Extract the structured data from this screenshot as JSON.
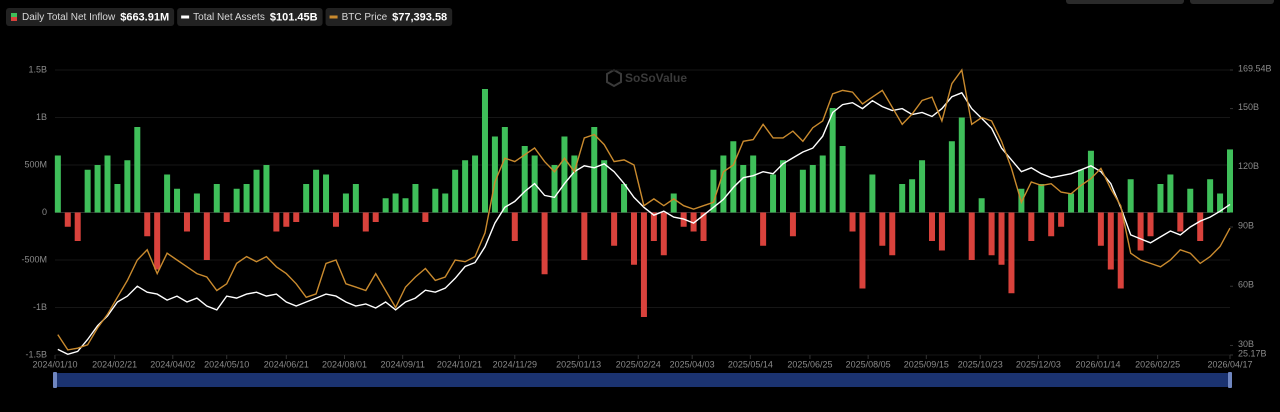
{
  "chart_data": {
    "type": "combo",
    "watermark": "SoSoValue",
    "x": [
      "2024-01-12",
      "2024-01-19",
      "2024-01-26",
      "2024-02-02",
      "2024-02-09",
      "2024-02-16",
      "2024-02-23",
      "2024-03-01",
      "2024-03-08",
      "2024-03-15",
      "2024-03-22",
      "2024-03-29",
      "2024-04-05",
      "2024-04-12",
      "2024-04-19",
      "2024-04-26",
      "2024-05-03",
      "2024-05-10",
      "2024-05-17",
      "2024-05-24",
      "2024-05-31",
      "2024-06-07",
      "2024-06-14",
      "2024-06-21",
      "2024-06-28",
      "2024-07-05",
      "2024-07-12",
      "2024-07-19",
      "2024-07-26",
      "2024-08-02",
      "2024-08-09",
      "2024-08-16",
      "2024-08-23",
      "2024-08-30",
      "2024-09-06",
      "2024-09-13",
      "2024-09-20",
      "2024-09-27",
      "2024-10-04",
      "2024-10-11",
      "2024-10-18",
      "2024-10-25",
      "2024-11-01",
      "2024-11-08",
      "2024-11-15",
      "2024-11-22",
      "2024-11-29",
      "2024-12-06",
      "2024-12-13",
      "2024-12-20",
      "2024-12-27",
      "2025-01-03",
      "2025-01-10",
      "2025-01-17",
      "2025-01-24",
      "2025-01-31",
      "2025-02-07",
      "2025-02-14",
      "2025-02-21",
      "2025-02-28",
      "2025-03-07",
      "2025-03-14",
      "2025-03-21",
      "2025-03-28",
      "2025-04-04",
      "2025-04-11",
      "2025-04-18",
      "2025-04-25",
      "2025-05-02",
      "2025-05-09",
      "2025-05-16",
      "2025-05-23",
      "2025-05-30",
      "2025-06-06",
      "2025-06-13",
      "2025-06-20",
      "2025-06-27",
      "2025-07-04",
      "2025-07-11",
      "2025-07-18",
      "2025-07-25",
      "2025-08-01",
      "2025-08-08",
      "2025-08-15",
      "2025-08-22",
      "2025-08-29",
      "2025-09-05",
      "2025-09-12",
      "2025-09-19",
      "2025-09-26",
      "2025-10-03",
      "2025-10-10",
      "2025-10-17",
      "2025-10-24",
      "2025-10-31",
      "2025-11-07",
      "2025-11-14",
      "2025-11-21",
      "2025-11-28",
      "2025-12-05",
      "2025-12-12",
      "2025-12-19",
      "2025-12-26",
      "2026-01-02",
      "2026-01-09",
      "2026-01-16",
      "2026-01-23",
      "2026-01-30",
      "2026-02-06",
      "2026-02-13",
      "2026-02-20",
      "2026-02-27",
      "2026-03-06",
      "2026-03-13",
      "2026-03-20",
      "2026-03-27",
      "2026-04-03",
      "2026-04-10",
      "2026-04-17"
    ],
    "xlim": [
      "2024-01-10",
      "2026-04-17"
    ],
    "xticks": [
      {
        "value": "2024-01-10",
        "label": "2024/01/10"
      },
      {
        "value": "2024-02-21",
        "label": "2024/02/21"
      },
      {
        "value": "2024-04-02",
        "label": "2024/04/02"
      },
      {
        "value": "2024-05-10",
        "label": "2024/05/10"
      },
      {
        "value": "2024-06-21",
        "label": "2024/06/21"
      },
      {
        "value": "2024-08-01",
        "label": "2024/08/01"
      },
      {
        "value": "2024-09-11",
        "label": "2024/09/11"
      },
      {
        "value": "2024-10-21",
        "label": "2024/10/21"
      },
      {
        "value": "2024-11-29",
        "label": "2024/11/29"
      },
      {
        "value": "2025-01-13",
        "label": "2025/01/13"
      },
      {
        "value": "2025-02-24",
        "label": "2025/02/24"
      },
      {
        "value": "2025-04-03",
        "label": "2025/04/03"
      },
      {
        "value": "2025-05-14",
        "label": "2025/05/14"
      },
      {
        "value": "2025-06-25",
        "label": "2025/06/25"
      },
      {
        "value": "2025-08-05",
        "label": "2025/08/05"
      },
      {
        "value": "2025-09-15",
        "label": "2025/09/15"
      },
      {
        "value": "2025-10-23",
        "label": "2025/10/23"
      },
      {
        "value": "2025-12-03",
        "label": "2025/12/03"
      },
      {
        "value": "2026-01-14",
        "label": "2026/01/14"
      },
      {
        "value": "2026-02-25",
        "label": "2026/02/25"
      },
      {
        "value": "2026-04-17",
        "label": "2026/04/17"
      }
    ],
    "ylim": [
      -1.5,
      1.5
    ],
    "yticks": [
      {
        "value": -1.5,
        "label": "-1.5B"
      },
      {
        "value": -1,
        "label": "-1B"
      },
      {
        "value": -0.5,
        "label": "-500M"
      },
      0,
      {
        "value": 0.5,
        "label": "500M"
      },
      {
        "value": 1,
        "label": "1B"
      },
      {
        "value": 1.5,
        "label": "1.5B"
      }
    ],
    "y2lim": [
      25.17,
      169.54
    ],
    "y2ticks": [
      {
        "value": 25.17,
        "label": "25.17B"
      },
      {
        "value": 30,
        "label": "30B"
      },
      {
        "value": 60,
        "label": "60B"
      },
      {
        "value": 90,
        "label": "90B"
      },
      {
        "value": 120,
        "label": "120B"
      },
      {
        "value": 150,
        "label": "150B"
      },
      {
        "value": 169.54,
        "label": "169.54B"
      }
    ],
    "y3lim": [
      40000,
      124000
    ],
    "series": [
      {
        "name": "Daily Total Net Inflow",
        "latest": "$663.91M",
        "type": "bar",
        "color": "#3fbf5a",
        "negative_color": "#d9423c",
        "values": [
          0.6,
          -0.15,
          -0.3,
          0.45,
          0.5,
          0.6,
          0.3,
          0.55,
          0.9,
          -0.25,
          -0.6,
          0.4,
          0.25,
          -0.2,
          0.2,
          -0.5,
          0.3,
          -0.1,
          0.25,
          0.3,
          0.45,
          0.5,
          -0.2,
          -0.15,
          -0.1,
          0.3,
          0.45,
          0.4,
          -0.15,
          0.2,
          0.3,
          -0.2,
          -0.1,
          0.15,
          0.2,
          0.15,
          0.3,
          -0.1,
          0.25,
          0.2,
          0.45,
          0.55,
          0.6,
          1.3,
          0.8,
          0.9,
          -0.3,
          0.7,
          0.6,
          -0.65,
          0.5,
          0.8,
          0.6,
          -0.5,
          0.9,
          0.55,
          -0.35,
          0.3,
          -0.55,
          -1.1,
          -0.3,
          -0.45,
          0.2,
          -0.15,
          -0.2,
          -0.3,
          0.45,
          0.6,
          0.75,
          0.5,
          0.6,
          -0.35,
          0.4,
          0.55,
          -0.25,
          0.45,
          0.5,
          0.6,
          1.1,
          0.7,
          -0.2,
          -0.8,
          0.4,
          -0.35,
          -0.45,
          0.3,
          0.35,
          0.55,
          -0.3,
          -0.4,
          0.75,
          1.0,
          -0.5,
          0.15,
          -0.45,
          -0.55,
          -0.85,
          0.25,
          -0.3,
          0.3,
          -0.25,
          -0.15,
          0.2,
          0.45,
          0.65,
          -0.35,
          -0.6,
          -0.8,
          0.35,
          -0.4,
          -0.25,
          0.3,
          0.4,
          -0.2,
          0.25,
          -0.3,
          0.35,
          0.2,
          0.66391
        ]
      },
      {
        "name": "Total Net Assets",
        "latest": "$101.45B",
        "type": "line",
        "axis": "y2",
        "color": "#ffffff",
        "values": [
          28,
          25.5,
          27,
          33,
          40,
          45,
          52,
          55,
          60,
          57,
          56,
          53,
          55,
          52,
          54,
          50,
          48,
          55,
          54,
          56,
          57,
          55,
          56,
          52,
          50,
          52,
          54,
          56,
          55,
          52,
          50,
          51,
          49,
          52,
          48,
          52,
          54,
          58,
          57,
          59,
          64,
          70,
          72,
          80,
          92,
          100,
          103,
          108,
          112,
          106,
          105,
          112,
          118,
          121,
          120,
          122,
          118,
          112,
          105,
          100,
          96,
          98,
          95,
          94,
          92,
          96,
          100,
          104,
          110,
          115,
          116,
          118,
          117,
          122,
          125,
          128,
          130,
          136,
          148,
          152,
          153,
          150,
          154,
          151,
          149,
          150,
          147,
          148,
          146,
          150,
          156,
          158,
          150,
          145,
          140,
          130,
          124,
          118,
          120,
          117,
          115,
          116,
          117,
          119,
          121,
          118,
          112,
          100,
          86,
          84,
          82,
          85,
          88,
          86,
          90,
          93,
          95,
          98,
          101.45
        ]
      },
      {
        "name": "BTC Price",
        "latest": "$77,393.58",
        "type": "line",
        "axis": "y3",
        "color": "#c98a2e",
        "values": [
          46000,
          41500,
          42000,
          43000,
          48000,
          52000,
          57000,
          62000,
          68000,
          71000,
          64000,
          70000,
          68000,
          66000,
          64000,
          63000,
          59000,
          61000,
          67000,
          69000,
          67500,
          69000,
          66000,
          64000,
          61000,
          57000,
          58000,
          67000,
          68000,
          61000,
          60000,
          59000,
          64000,
          59000,
          54000,
          60000,
          63000,
          65500,
          62000,
          63000,
          68000,
          67500,
          69000,
          76000,
          91000,
          98000,
          97000,
          99000,
          101000,
          97000,
          94000,
          98000,
          94000,
          104000,
          105000,
          102000,
          97000,
          97500,
          96000,
          84000,
          86000,
          84000,
          86000,
          84000,
          83000,
          84000,
          85000,
          94000,
          96000,
          103000,
          103500,
          108000,
          104000,
          104000,
          106000,
          103000,
          107000,
          109000,
          117000,
          118000,
          117500,
          114000,
          116000,
          118000,
          113000,
          108000,
          111000,
          115000,
          116000,
          109000,
          120000,
          124000,
          108000,
          110000,
          109000,
          103000,
          95000,
          85000,
          91000,
          90000,
          90500,
          88000,
          87500,
          90000,
          92000,
          95000,
          89000,
          84000,
          70000,
          68000,
          67000,
          66000,
          68000,
          71000,
          70000,
          67000,
          69000,
          72000,
          77393.58
        ]
      }
    ]
  }
}
